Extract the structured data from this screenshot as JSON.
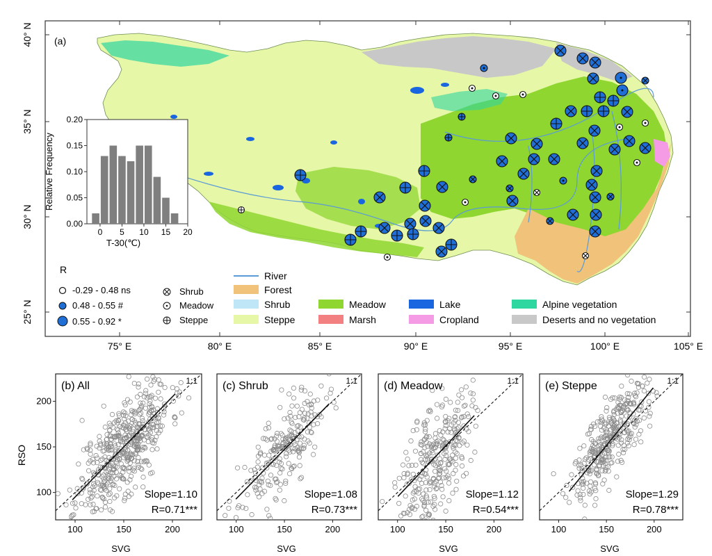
{
  "map": {
    "panel_label": "(a)",
    "lon_ticks": [
      "75° E",
      "80° E",
      "85° E",
      "90° E",
      "95° E",
      "100° E",
      "105° E"
    ],
    "lat_ticks": [
      "40° N",
      "35° N",
      "30° N",
      "25° N"
    ],
    "legend_R": {
      "title": "R",
      "classes": [
        {
          "label": "-0.29 - 0.48 ns",
          "color": "#ffffff"
        },
        {
          "label": "0.48 - 0.55 #",
          "color": "#1f6fd6"
        },
        {
          "label": "0.55 - 0.92 *",
          "color": "#1f6fd6"
        }
      ]
    },
    "legend_vegtype": [
      {
        "label": "Shrub",
        "icon": "circle-x-icon"
      },
      {
        "label": "Meadow",
        "icon": "circle-dot-icon"
      },
      {
        "label": "Steppe",
        "icon": "circle-plus-icon"
      }
    ],
    "legend_landcover": [
      {
        "label": "River",
        "color": "#5b9bd5",
        "kind": "line"
      },
      {
        "label": "Forest",
        "color": "#f0c27a",
        "kind": "box"
      },
      {
        "label": "Shrub",
        "color": "#bfe6f7",
        "kind": "box"
      },
      {
        "label": "Steppe",
        "color": "#e6f7a8",
        "kind": "box"
      },
      {
        "label": "Meadow",
        "color": "#8fd630",
        "kind": "box"
      },
      {
        "label": "Marsh",
        "color": "#f28080",
        "kind": "box"
      },
      {
        "label": "Lake",
        "color": "#1a66e0",
        "kind": "box"
      },
      {
        "label": "Cropland",
        "color": "#f59be6",
        "kind": "box"
      },
      {
        "label": "Alpine vegetation",
        "color": "#2ed6a0",
        "kind": "box"
      },
      {
        "label": "Deserts and no vegetation",
        "color": "#c8c8c8",
        "kind": "box"
      }
    ]
  },
  "chart_data": [
    {
      "type": "bar",
      "title": "",
      "xlabel": "T-30(℃)",
      "ylabel": "Relative Frequency",
      "categories": [
        -2,
        0,
        2,
        4,
        6,
        8,
        10,
        12,
        14,
        16,
        18
      ],
      "values": [
        0.02,
        0.13,
        0.15,
        0.13,
        0.12,
        0.15,
        0.15,
        0.09,
        0.05,
        0.02,
        0.0
      ],
      "xticks": [
        "0",
        "5",
        "10",
        "15",
        "20"
      ],
      "yticks": [
        "0.00",
        "0.05",
        "0.10",
        "0.15",
        "0.20"
      ],
      "xlim": [
        -3,
        20
      ],
      "ylim": [
        0,
        0.2
      ]
    },
    {
      "type": "scatter",
      "title": "(b) All",
      "xlabel": "SVG",
      "ylabel": "RSO",
      "slope_label": "Slope=1.10",
      "r_label": "R=0.71***",
      "ref_label": "1:1",
      "xlim": [
        80,
        230
      ],
      "ylim": [
        70,
        230
      ],
      "xticks": [
        "100",
        "150",
        "200"
      ],
      "yticks": [
        "100",
        "150",
        "200"
      ],
      "seed": 11,
      "n": 520,
      "cx": 150,
      "cy": 150,
      "sx": 24,
      "r": 0.71,
      "fit_slope": 1.1,
      "values": []
    },
    {
      "type": "scatter",
      "title": "(c) Shrub",
      "xlabel": "",
      "ylabel": "",
      "slope_label": "Slope=1.08",
      "r_label": "R=0.73***",
      "ref_label": "1:1",
      "xlim": [
        80,
        230
      ],
      "ylim": [
        70,
        230
      ],
      "xticks": [
        "100",
        "150",
        "200"
      ],
      "yticks": [],
      "seed": 23,
      "n": 230,
      "cx": 148,
      "cy": 145,
      "sx": 22,
      "r": 0.73,
      "fit_slope": 1.08,
      "values": []
    },
    {
      "type": "scatter",
      "title": "(d) Meadow",
      "xlabel": "SVG",
      "ylabel": "",
      "slope_label": "Slope=1.12",
      "r_label": "R=0.54***",
      "ref_label": "1:1",
      "xlim": [
        80,
        230
      ],
      "ylim": [
        70,
        230
      ],
      "xticks": [
        "100",
        "150",
        "200"
      ],
      "yticks": [],
      "seed": 37,
      "n": 300,
      "cx": 140,
      "cy": 140,
      "sx": 18,
      "r": 0.54,
      "fit_slope": 1.12,
      "values": []
    },
    {
      "type": "scatter",
      "title": "(e) Steppe",
      "xlabel": "SVG",
      "ylabel": "",
      "slope_label": "Slope=1.29",
      "r_label": "R=0.78***",
      "ref_label": "1:1",
      "xlim": [
        80,
        230
      ],
      "ylim": [
        70,
        230
      ],
      "xticks": [
        "100",
        "150",
        "200"
      ],
      "yticks": [],
      "seed": 51,
      "n": 360,
      "cx": 155,
      "cy": 158,
      "sx": 20,
      "r": 0.78,
      "fit_slope": 1.29,
      "values": []
    }
  ],
  "bottom_labels": {
    "shrub_xlabel": "SVG"
  }
}
